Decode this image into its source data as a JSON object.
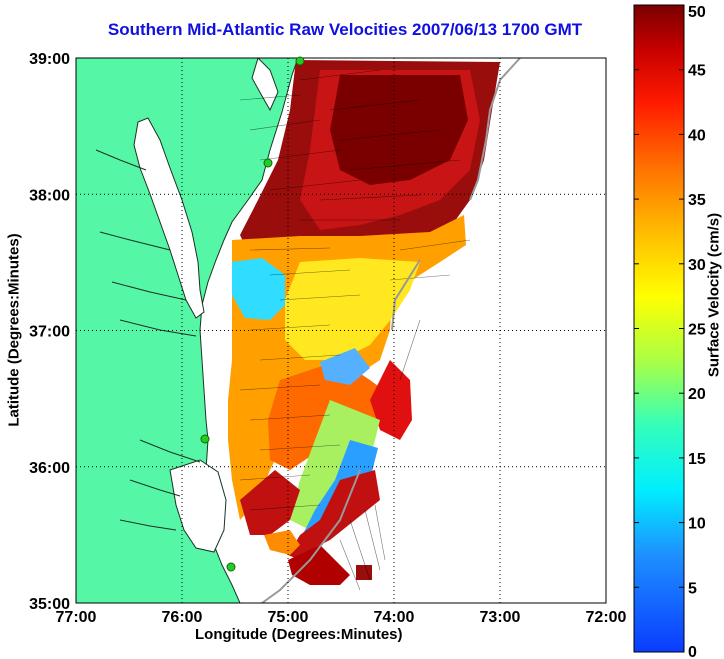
{
  "title": "Southern Mid-Atlantic Raw Velocities 2007/06/13 1700 GMT",
  "xlabel": "Longitude (Degrees:Minutes)",
  "ylabel": "Latitude (Degrees:Minutes)",
  "colorbar": {
    "label": "Surface Velocity (cm/s)",
    "min": 0,
    "max": 50,
    "ticks": [
      "0",
      "5",
      "10",
      "15",
      "20",
      "25",
      "30",
      "35",
      "40",
      "45",
      "50"
    ]
  },
  "map": {
    "lon_range": [
      -77,
      -72
    ],
    "lat_range": [
      35,
      39
    ],
    "x_ticks": [
      "77:00",
      "76:00",
      "75:00",
      "74:00",
      "73:00",
      "72:00"
    ],
    "y_ticks": [
      "35:00",
      "36:00",
      "37:00",
      "38:00",
      "39:00"
    ],
    "grid": "dotted",
    "land_color": "#55f7a7",
    "water_color": "#ffffff",
    "station_color": "#22cc22"
  }
}
